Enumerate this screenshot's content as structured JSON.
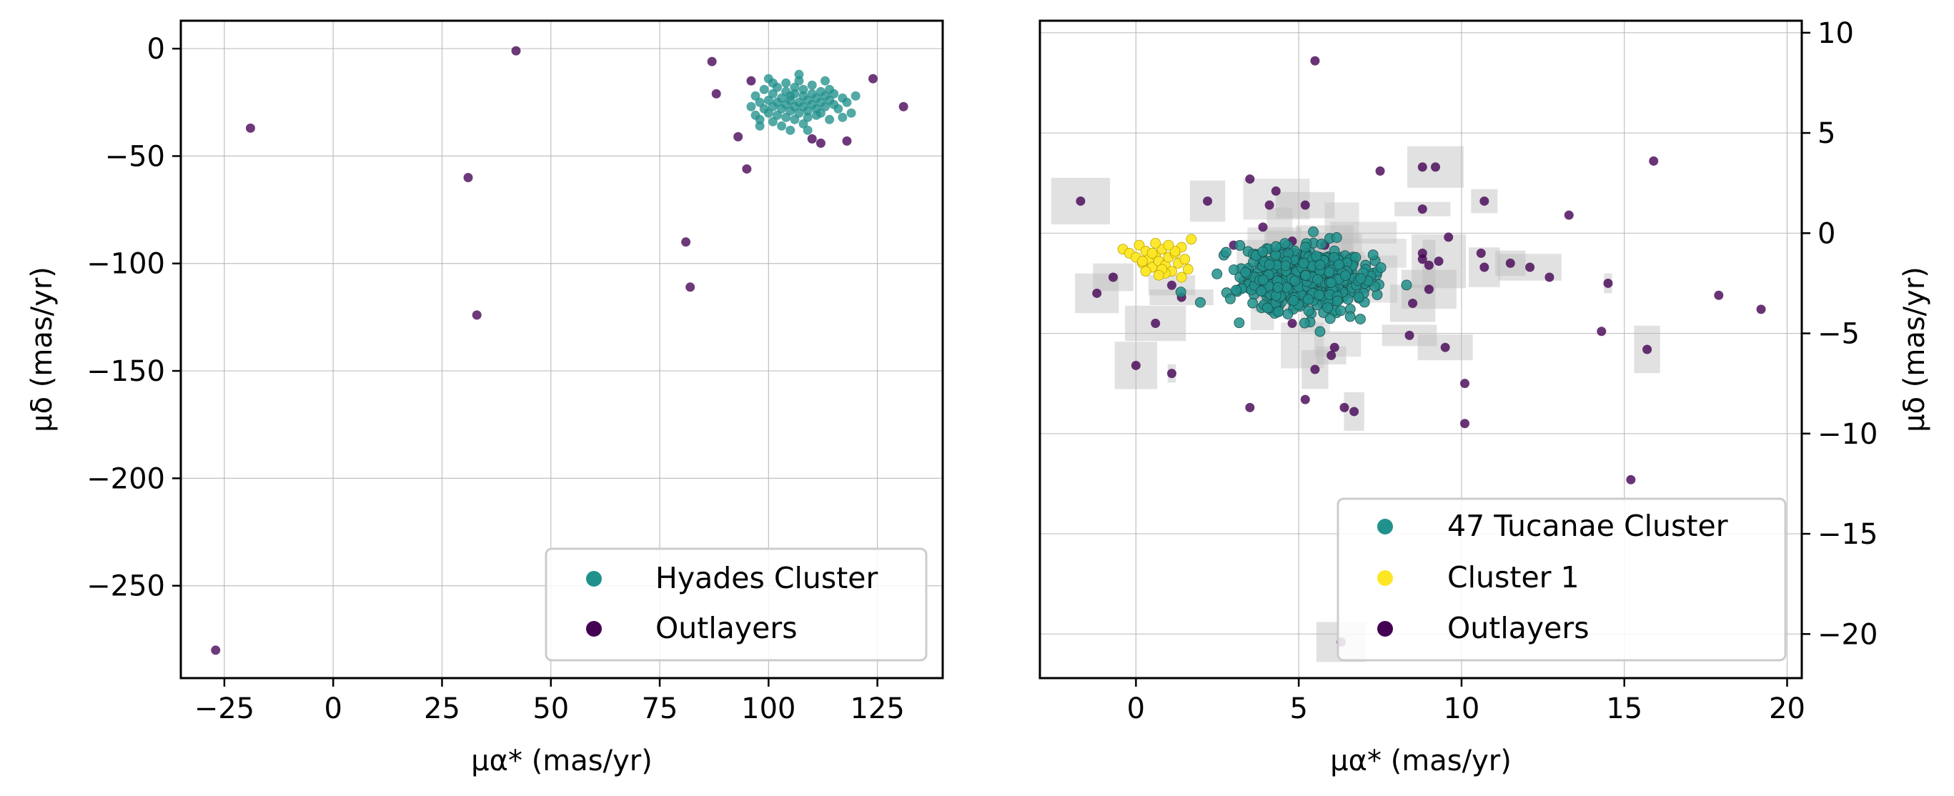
{
  "chart_data": [
    {
      "type": "scatter",
      "xlabel": "μα* (mas/yr)",
      "ylabel": "μδ (mas/yr)",
      "xlim": [
        -35,
        140
      ],
      "ylim": [
        -293,
        13
      ],
      "xticks": [
        -25,
        0,
        25,
        50,
        75,
        100,
        125
      ],
      "yticks": [
        0,
        -50,
        -100,
        -150,
        -200,
        -250
      ],
      "xtick_labels": [
        "−25",
        "0",
        "25",
        "50",
        "75",
        "100",
        "125"
      ],
      "ytick_labels": [
        "0",
        "−50",
        "−100",
        "−150",
        "−200",
        "−250"
      ],
      "grid": true,
      "legend_position": "lower-right",
      "series": [
        {
          "name": "Hyades Cluster",
          "color": "#21918c",
          "points": [
            [
              96,
              -27
            ],
            [
              97,
              -22
            ],
            [
              97,
              -31
            ],
            [
              98,
              -25
            ],
            [
              98,
              -33
            ],
            [
              99,
              -19
            ],
            [
              99,
              -28
            ],
            [
              100,
              -24
            ],
            [
              100,
              -30
            ],
            [
              100,
              -14
            ],
            [
              101,
              -21
            ],
            [
              101,
              -27
            ],
            [
              101,
              -34
            ],
            [
              102,
              -18
            ],
            [
              102,
              -25
            ],
            [
              102,
              -31
            ],
            [
              103,
              -23
            ],
            [
              103,
              -28
            ],
            [
              103,
              -36
            ],
            [
              104,
              -16
            ],
            [
              104,
              -20
            ],
            [
              104,
              -26
            ],
            [
              104,
              -32
            ],
            [
              105,
              -22
            ],
            [
              105,
              -29
            ],
            [
              105,
              -24
            ],
            [
              106,
              -18
            ],
            [
              106,
              -27
            ],
            [
              106,
              -33
            ],
            [
              106,
              -21
            ],
            [
              107,
              -25
            ],
            [
              107,
              -30
            ],
            [
              107,
              -15
            ],
            [
              108,
              -22
            ],
            [
              108,
              -27
            ],
            [
              108,
              -35
            ],
            [
              108,
              -19
            ],
            [
              109,
              -24
            ],
            [
              109,
              -29
            ],
            [
              109,
              -32
            ],
            [
              110,
              -21
            ],
            [
              110,
              -26
            ],
            [
              110,
              -17
            ],
            [
              111,
              -23
            ],
            [
              111,
              -28
            ],
            [
              111,
              -31
            ],
            [
              112,
              -20
            ],
            [
              112,
              -25
            ],
            [
              112,
              -30
            ],
            [
              113,
              -22
            ],
            [
              113,
              -27
            ],
            [
              114,
              -19
            ],
            [
              114,
              -24
            ],
            [
              114,
              -33
            ],
            [
              115,
              -26
            ],
            [
              115,
              -21
            ],
            [
              116,
              -28
            ],
            [
              117,
              -23
            ],
            [
              118,
              -25
            ],
            [
              119,
              -30
            ],
            [
              120,
              -22
            ],
            [
              105,
              -38
            ],
            [
              109,
              -38
            ],
            [
              101,
              -16
            ],
            [
              107,
              -12
            ],
            [
              113,
              -15
            ],
            [
              117,
              -32
            ],
            [
              98,
              -36
            ]
          ]
        },
        {
          "name": "Outlayers",
          "color": "#440154",
          "points": [
            [
              42,
              -1
            ],
            [
              -19,
              -37
            ],
            [
              31,
              -60
            ],
            [
              33,
              -124
            ],
            [
              87,
              -6
            ],
            [
              88,
              -21
            ],
            [
              96,
              -15
            ],
            [
              93,
              -41
            ],
            [
              95,
              -56
            ],
            [
              81,
              -90
            ],
            [
              82,
              -111
            ],
            [
              124,
              -14
            ],
            [
              131,
              -27
            ],
            [
              118,
              -43
            ],
            [
              112,
              -44
            ],
            [
              110,
              -42
            ],
            [
              -27,
              -280
            ]
          ]
        }
      ]
    },
    {
      "type": "scatter",
      "xlabel": "μα* (mas/yr)",
      "ylabel": "μδ (mas/yr)",
      "xlim": [
        -2.95,
        20.45
      ],
      "ylim": [
        -22.2,
        10.6
      ],
      "xticks": [
        0,
        5,
        10,
        15,
        20
      ],
      "yticks": [
        10,
        5,
        0,
        -5,
        -10,
        -15,
        -20
      ],
      "xtick_labels": [
        "0",
        "5",
        "10",
        "15",
        "20"
      ],
      "ytick_labels": [
        "10",
        "5",
        "0",
        "−5",
        "−10",
        "−15",
        "−20"
      ],
      "grid": true,
      "legend_position": "lower-right",
      "series": [
        {
          "name": "47 Tucanae Cluster",
          "color": "#21918c",
          "cluster_center": [
            5.2,
            -2.3
          ],
          "cluster_spread": [
            0.95,
            0.75
          ],
          "approx_count": 650
        },
        {
          "name": "Cluster 1",
          "color": "#fde725",
          "points": [
            [
              -0.4,
              -0.8
            ],
            [
              -0.2,
              -1.0
            ],
            [
              0.0,
              -1.2
            ],
            [
              0.1,
              -0.6
            ],
            [
              0.2,
              -1.5
            ],
            [
              0.3,
              -0.9
            ],
            [
              0.4,
              -1.3
            ],
            [
              0.5,
              -1.7
            ],
            [
              0.6,
              -1.1
            ],
            [
              0.7,
              -1.4
            ],
            [
              0.8,
              -0.8
            ],
            [
              0.9,
              -1.6
            ],
            [
              1.0,
              -1.2
            ],
            [
              1.1,
              -1.9
            ],
            [
              1.2,
              -1.0
            ],
            [
              1.3,
              -1.5
            ],
            [
              1.4,
              -0.7
            ],
            [
              1.5,
              -1.3
            ],
            [
              1.6,
              -1.8
            ],
            [
              1.7,
              -0.3
            ],
            [
              0.3,
              -1.9
            ],
            [
              0.6,
              -0.5
            ],
            [
              0.9,
              -2.0
            ],
            [
              1.2,
              -0.9
            ],
            [
              0.5,
              -1.0
            ],
            [
              0.8,
              -1.8
            ],
            [
              1.0,
              -0.6
            ],
            [
              0.2,
              -1.4
            ],
            [
              1.4,
              -2.2
            ],
            [
              0.7,
              -2.1
            ]
          ]
        },
        {
          "name": "Outlayers",
          "color": "#440154",
          "points": [
            [
              5.5,
              8.6
            ],
            [
              15.9,
              3.6
            ],
            [
              8.8,
              3.3
            ],
            [
              9.2,
              3.3
            ],
            [
              7.5,
              3.1
            ],
            [
              3.5,
              2.7
            ],
            [
              -1.7,
              1.6
            ],
            [
              2.2,
              1.6
            ],
            [
              4.1,
              1.4
            ],
            [
              5.2,
              1.4
            ],
            [
              8.8,
              1.2
            ],
            [
              10.7,
              1.6
            ],
            [
              13.3,
              0.9
            ],
            [
              9.6,
              -0.2
            ],
            [
              4.8,
              -0.4
            ],
            [
              5.8,
              -0.6
            ],
            [
              10.6,
              -1.0
            ],
            [
              10.7,
              -1.7
            ],
            [
              11.5,
              -1.5
            ],
            [
              12.1,
              -1.7
            ],
            [
              12.7,
              -2.2
            ],
            [
              14.5,
              -2.5
            ],
            [
              17.9,
              -3.1
            ],
            [
              19.2,
              -3.8
            ],
            [
              -1.2,
              -3.0
            ],
            [
              -0.7,
              -2.2
            ],
            [
              1.1,
              -2.6
            ],
            [
              1.4,
              -3.2
            ],
            [
              0.6,
              -4.5
            ],
            [
              8.5,
              -3.5
            ],
            [
              9.0,
              -2.8
            ],
            [
              9.3,
              -1.4
            ],
            [
              8.8,
              -1.0
            ],
            [
              8.8,
              -1.3
            ],
            [
              9.0,
              -1.6
            ],
            [
              14.3,
              -4.9
            ],
            [
              15.7,
              -5.8
            ],
            [
              9.5,
              -5.7
            ],
            [
              10.1,
              -7.5
            ],
            [
              10.1,
              -9.5
            ],
            [
              0.0,
              -6.6
            ],
            [
              1.1,
              -7.0
            ],
            [
              3.5,
              -8.7
            ],
            [
              5.2,
              -8.3
            ],
            [
              6.4,
              -8.7
            ],
            [
              6.7,
              -8.9
            ],
            [
              5.5,
              -6.8
            ],
            [
              6.0,
              -6.1
            ],
            [
              6.1,
              -5.7
            ],
            [
              4.8,
              -4.5
            ],
            [
              8.4,
              -5.1
            ],
            [
              3.0,
              -0.6
            ],
            [
              4.3,
              2.1
            ],
            [
              4.6,
              -0.8
            ],
            [
              15.2,
              -12.3
            ],
            [
              6.3,
              -20.4
            ],
            [
              6.0,
              -1.2
            ],
            [
              3.9,
              0.3
            ]
          ]
        }
      ]
    }
  ]
}
